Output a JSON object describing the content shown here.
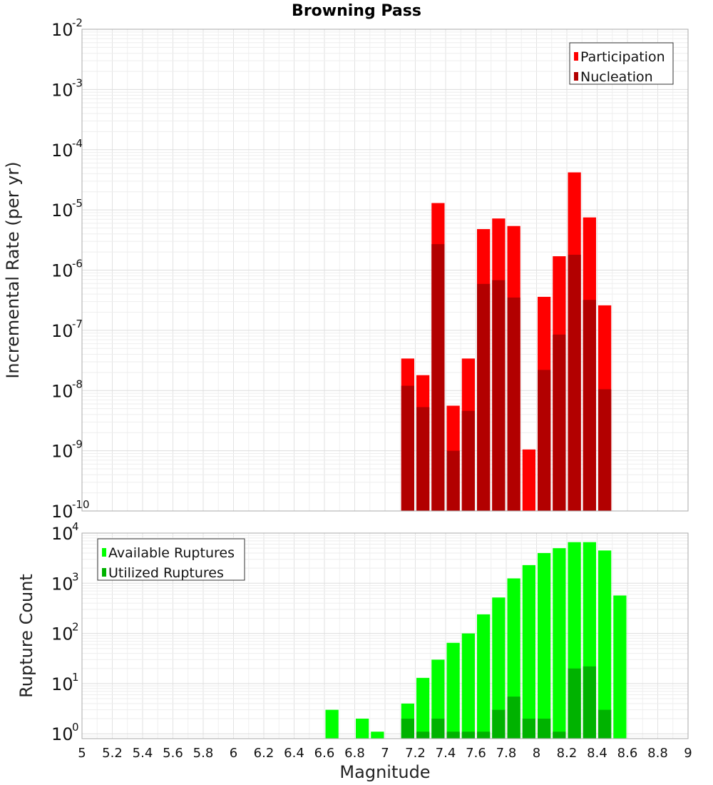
{
  "chart_data": [
    {
      "type": "bar",
      "title": "Browning Pass",
      "ylabel": "Incremental Rate (per yr)",
      "xlabel": "",
      "xlim": [
        5,
        9
      ],
      "ylim": [
        1e-10,
        0.01
      ],
      "y_scale": "log",
      "bar_width": 0.1,
      "grid": true,
      "legend_position": "top-right",
      "y_tick_exponents": [
        "-10",
        "-9",
        "-8",
        "-7",
        "-6",
        "-5",
        "-4",
        "-3",
        "-2"
      ],
      "y_tick_base": "10",
      "series": [
        {
          "name": "Participation",
          "color": "#ff0000",
          "x": [
            7.15,
            7.25,
            7.35,
            7.45,
            7.55,
            7.65,
            7.75,
            7.85,
            7.95,
            8.05,
            8.15,
            8.25,
            8.35,
            8.45
          ],
          "values": [
            3.4e-08,
            1.8e-08,
            1.3e-05,
            5.6e-09,
            3.4e-08,
            4.8e-06,
            7.2e-06,
            5.4e-06,
            1.05e-09,
            3.6e-07,
            1.7e-06,
            4.2e-05,
            7.5e-06,
            2.6e-07
          ]
        },
        {
          "name": "Nucleation",
          "color": "#b20000",
          "x": [
            7.15,
            7.25,
            7.35,
            7.45,
            7.55,
            7.65,
            7.75,
            7.85,
            7.95,
            8.05,
            8.15,
            8.25,
            8.35,
            8.45
          ],
          "values": [
            1.2e-08,
            5.3e-09,
            2.7e-06,
            1e-09,
            4.6e-09,
            5.9e-07,
            6.8e-07,
            3.5e-07,
            1e-10,
            2.2e-08,
            8.5e-08,
            1.8e-06,
            3.2e-07,
            1.05e-08
          ]
        }
      ]
    },
    {
      "type": "bar",
      "title": "",
      "ylabel": "Rupture Count",
      "xlabel": "Magnitude",
      "xlim": [
        5,
        9
      ],
      "ylim": [
        0.8,
        10000
      ],
      "y_scale": "log",
      "bar_width": 0.1,
      "grid": true,
      "legend_position": "top-left",
      "y_tick_exponents": [
        "0",
        "1",
        "2",
        "3",
        "4"
      ],
      "y_tick_base": "10",
      "x_tick_labels": [
        "5",
        "5.2",
        "5.4",
        "5.6",
        "5.8",
        "6",
        "6.2",
        "6.4",
        "6.6",
        "6.8",
        "7",
        "7.2",
        "7.4",
        "7.6",
        "7.8",
        "8",
        "8.2",
        "8.4",
        "8.6",
        "8.8",
        "9"
      ],
      "series": [
        {
          "name": "Available Ruptures",
          "color": "#00ff00",
          "x": [
            6.65,
            6.85,
            6.95,
            7.15,
            7.25,
            7.35,
            7.45,
            7.55,
            7.65,
            7.75,
            7.85,
            7.95,
            8.05,
            8.15,
            8.25,
            8.35,
            8.45,
            8.55
          ],
          "values": [
            3,
            2,
            1.1,
            4,
            13,
            30,
            65,
            100,
            240,
            520,
            1250,
            2300,
            4000,
            5000,
            6600,
            6600,
            4500,
            570
          ]
        },
        {
          "name": "Utilized Ruptures",
          "color": "#00b200",
          "x": [
            7.15,
            7.25,
            7.35,
            7.45,
            7.55,
            7.65,
            7.75,
            7.85,
            7.95,
            8.05,
            8.15,
            8.25,
            8.35,
            8.45
          ],
          "values": [
            2,
            1.1,
            2,
            1.1,
            1.1,
            1.1,
            3,
            5.5,
            2,
            2,
            1.1,
            20,
            22,
            3
          ]
        }
      ]
    }
  ]
}
